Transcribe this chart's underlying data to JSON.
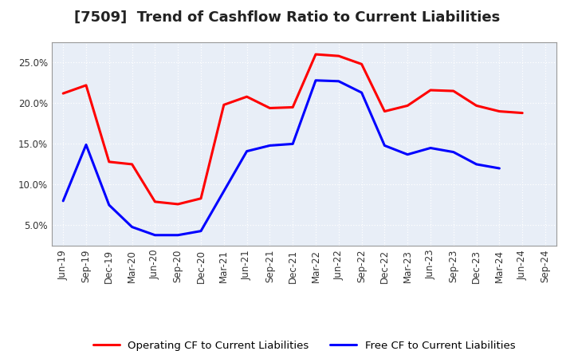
{
  "title": "[7509]  Trend of Cashflow Ratio to Current Liabilities",
  "x_labels": [
    "Jun-19",
    "Sep-19",
    "Dec-19",
    "Mar-20",
    "Jun-20",
    "Sep-20",
    "Dec-20",
    "Mar-21",
    "Jun-21",
    "Sep-21",
    "Dec-21",
    "Mar-22",
    "Jun-22",
    "Sep-22",
    "Dec-22",
    "Mar-23",
    "Jun-23",
    "Sep-23",
    "Dec-23",
    "Mar-24",
    "Jun-24",
    "Sep-24"
  ],
  "operating_cf": [
    0.212,
    0.222,
    0.128,
    0.125,
    0.079,
    0.076,
    0.083,
    0.198,
    0.208,
    0.194,
    0.195,
    0.26,
    0.258,
    0.248,
    0.19,
    0.197,
    0.216,
    0.215,
    0.197,
    0.19,
    0.188,
    null
  ],
  "free_cf": [
    0.08,
    0.149,
    0.075,
    0.048,
    0.038,
    0.038,
    0.043,
    null,
    0.141,
    0.148,
    0.15,
    0.228,
    0.227,
    0.213,
    0.148,
    0.137,
    0.145,
    0.14,
    0.125,
    0.12,
    null,
    null
  ],
  "operating_color": "#ff0000",
  "free_color": "#0000ff",
  "ylim": [
    0.025,
    0.275
  ],
  "yticks": [
    0.05,
    0.1,
    0.15,
    0.2,
    0.25
  ],
  "plot_bg_color": "#e8eef7",
  "fig_bg_color": "#ffffff",
  "grid_color": "#ffffff",
  "legend_op": "Operating CF to Current Liabilities",
  "legend_free": "Free CF to Current Liabilities",
  "title_fontsize": 13,
  "tick_fontsize": 8.5
}
